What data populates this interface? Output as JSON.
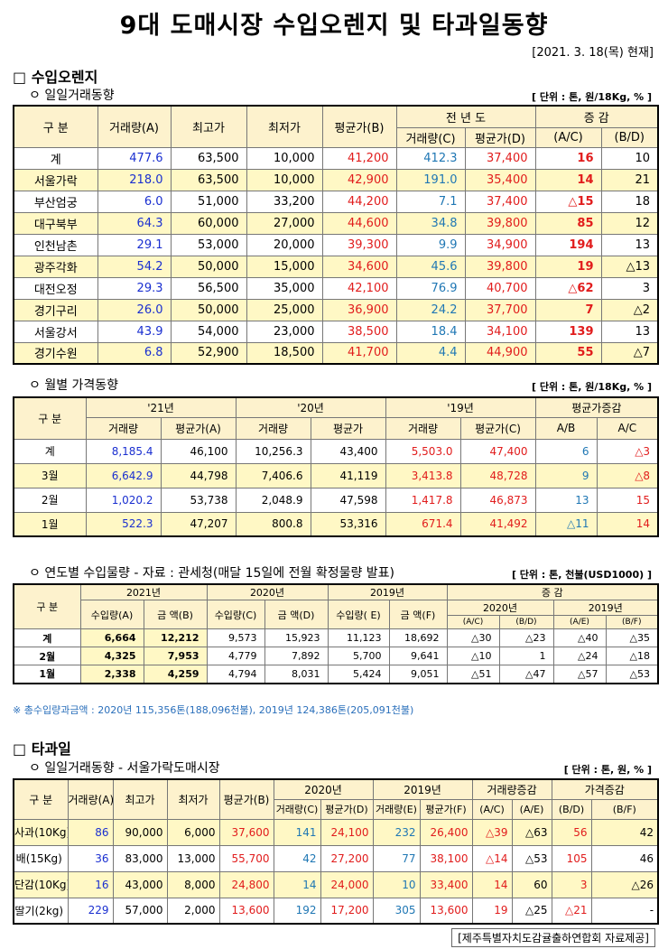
{
  "title": "9대 도매시장 수입오렌지 및 타과일동향",
  "date": "[2021. 3. 18(목) 현재]",
  "orange": {
    "section": "□ 수입오렌지",
    "daily": {
      "subtitle": "ㅇ 일일거래동향",
      "unit": "[ 단위 : 톤, 원/18Kg, % ]",
      "headers": {
        "gubun": "구 분",
        "vol": "거래량(A)",
        "max": "최고가",
        "min": "최저가",
        "avg": "평균가(B)",
        "prev": "전 년 도",
        "change": "증 감",
        "pvol": "거래량(C)",
        "pavg": "평균가(D)",
        "ac": "(A/C)",
        "bd": "(B/D)"
      },
      "rows": [
        {
          "name": "계",
          "vol": "477.6",
          "max": "63,500",
          "min": "10,000",
          "avg": "41,200",
          "pvol": "412.3",
          "pavg": "37,400",
          "ac": "16",
          "bd": "10"
        },
        {
          "name": "서울가락",
          "vol": "218.0",
          "max": "63,500",
          "min": "10,000",
          "avg": "42,900",
          "pvol": "191.0",
          "pavg": "35,400",
          "ac": "14",
          "bd": "21"
        },
        {
          "name": "부산엄궁",
          "vol": "6.0",
          "max": "51,000",
          "min": "33,200",
          "avg": "44,200",
          "pvol": "7.1",
          "pavg": "37,400",
          "ac": "△15",
          "bd": "18"
        },
        {
          "name": "대구북부",
          "vol": "64.3",
          "max": "60,000",
          "min": "27,000",
          "avg": "44,600",
          "pvol": "34.8",
          "pavg": "39,800",
          "ac": "85",
          "bd": "12"
        },
        {
          "name": "인천남촌",
          "vol": "29.1",
          "max": "53,000",
          "min": "20,000",
          "avg": "39,300",
          "pvol": "9.9",
          "pavg": "34,900",
          "ac": "194",
          "bd": "13"
        },
        {
          "name": "광주각화",
          "vol": "54.2",
          "max": "50,000",
          "min": "15,000",
          "avg": "34,600",
          "pvol": "45.6",
          "pavg": "39,800",
          "ac": "19",
          "bd": "△13"
        },
        {
          "name": "대전오정",
          "vol": "29.3",
          "max": "56,500",
          "min": "35,000",
          "avg": "42,100",
          "pvol": "76.9",
          "pavg": "40,700",
          "ac": "△62",
          "bd": "3"
        },
        {
          "name": "경기구리",
          "vol": "26.0",
          "max": "50,000",
          "min": "25,000",
          "avg": "36,900",
          "pvol": "24.2",
          "pavg": "37,700",
          "ac": "7",
          "bd": "△2"
        },
        {
          "name": "서울강서",
          "vol": "43.9",
          "max": "54,000",
          "min": "23,000",
          "avg": "38,500",
          "pvol": "18.4",
          "pavg": "34,100",
          "ac": "139",
          "bd": "13"
        },
        {
          "name": "경기수원",
          "vol": "6.8",
          "max": "52,900",
          "min": "18,500",
          "avg": "41,700",
          "pvol": "4.4",
          "pavg": "44,900",
          "ac": "55",
          "bd": "△7"
        }
      ]
    },
    "monthly": {
      "subtitle": "ㅇ 월별 가격동향",
      "unit": "[ 단위 : 톤, 원/18Kg, % ]",
      "headers": {
        "gubun": "구 분",
        "y21": "'21년",
        "y20": "'20년",
        "y19": "'19년",
        "chg": "평균가증감",
        "vol": "거래량",
        "avgA": "평균가(A)",
        "avg": "평균가",
        "avgC": "평균가(C)",
        "ab": "A/B",
        "ac": "A/C"
      },
      "rows": [
        {
          "name": "계",
          "v21": "8,185.4",
          "a21": "46,100",
          "v20": "10,256.3",
          "a20": "43,400",
          "v19": "5,503.0",
          "a19": "47,400",
          "ab": "6",
          "ac": "△3"
        },
        {
          "name": "3월",
          "v21": "6,642.9",
          "a21": "44,798",
          "v20": "7,406.6",
          "a20": "41,119",
          "v19": "3,413.8",
          "a19": "48,728",
          "ab": "9",
          "ac": "△8"
        },
        {
          "name": "2월",
          "v21": "1,020.2",
          "a21": "53,738",
          "v20": "2,048.9",
          "a20": "47,598",
          "v19": "1,417.8",
          "a19": "46,873",
          "ab": "13",
          "ac": "15"
        },
        {
          "name": "1월",
          "v21": "522.3",
          "a21": "47,207",
          "v20": "800.8",
          "a20": "53,316",
          "v19": "671.4",
          "a19": "41,492",
          "ab": "△11",
          "ac": "14"
        }
      ]
    },
    "yearly": {
      "subtitle": "ㅇ 연도별 수입물량 - 자료 : 관세청(매달 15일에 전월 확정물량 발표)",
      "unit": "[ 단위 : 톤, 천불(USD1000) ]",
      "headers": {
        "gubun": "구 분",
        "y21": "2021년",
        "y20": "2020년",
        "y19": "2019년",
        "chg": "증 감",
        "c20": "2020년",
        "c19": "2019년",
        "qa": "수입량(A)",
        "amtb": "금 액(B)",
        "qc": "수입량(C)",
        "amtd": "금 액(D)",
        "qe": "수입량( E)",
        "amtf": "금 액(F)",
        "ac": "(A/C)",
        "bd": "(B/D)",
        "ae": "(A/E)",
        "bf": "(B/F)"
      },
      "rows": [
        {
          "name": "계",
          "qa": "6,664",
          "ab": "12,212",
          "qc": "9,573",
          "ad": "15,923",
          "qe": "11,123",
          "af": "18,692",
          "c1": "△30",
          "c2": "△23",
          "c3": "△40",
          "c4": "△35"
        },
        {
          "name": "2월",
          "qa": "4,325",
          "ab": "7,953",
          "qc": "4,779",
          "ad": "7,892",
          "qe": "5,700",
          "af": "9,641",
          "c1": "△10",
          "c2": "1",
          "c3": "△24",
          "c4": "△18"
        },
        {
          "name": "1월",
          "qa": "2,338",
          "ab": "4,259",
          "qc": "4,794",
          "ad": "8,031",
          "qe": "5,424",
          "af": "9,051",
          "c1": "△51",
          "c2": "△47",
          "c3": "△57",
          "c4": "△53"
        }
      ],
      "note": "※ 총수입량과금액 : 2020년 115,356톤(188,096천불),   2019년 124,386톤(205,091천불)"
    }
  },
  "fruit": {
    "section": "□ 타과일",
    "subtitle": "ㅇ 일일거래동향 - 서울가락도매시장",
    "unit": "[ 단위 : 톤, 원, % ]",
    "headers": {
      "gubun": "구 분",
      "vol": "거래량(A)",
      "max": "최고가",
      "min": "최저가",
      "avg": "평균가(B)",
      "y20": "2020년",
      "y19": "2019년",
      "volchg": "거래량증감",
      "pricechg": "가격증감",
      "c": "거래량(C)",
      "d": "평균가(D)",
      "e": "거래량(E)",
      "f": "평균가(F)",
      "ac": "(A/C)",
      "ae": "(A/E)",
      "bd": "(B/D)",
      "bf": "(B/F)"
    },
    "rows": [
      {
        "name": "사과(10Kg)",
        "vol": "86",
        "max": "90,000",
        "min": "6,000",
        "avg": "37,600",
        "c": "141",
        "d": "24,100",
        "e": "232",
        "f": "26,400",
        "ac": "△39",
        "ae": "△63",
        "bd": "56",
        "bf": "42"
      },
      {
        "name": "배(15Kg)",
        "vol": "36",
        "max": "83,000",
        "min": "13,000",
        "avg": "55,700",
        "c": "42",
        "d": "27,200",
        "e": "77",
        "f": "38,100",
        "ac": "△14",
        "ae": "△53",
        "bd": "105",
        "bf": "46"
      },
      {
        "name": "단감(10Kg)",
        "vol": "16",
        "max": "43,000",
        "min": "8,000",
        "avg": "24,800",
        "c": "14",
        "d": "24,000",
        "e": "10",
        "f": "33,400",
        "ac": "14",
        "ae": "60",
        "bd": "3",
        "bf": "△26"
      },
      {
        "name": "딸기(2kg)",
        "vol": "229",
        "max": "57,000",
        "min": "2,000",
        "avg": "13,600",
        "c": "192",
        "d": "17,200",
        "e": "305",
        "f": "13,600",
        "ac": "19",
        "ae": "△25",
        "bd": "△21",
        "bf": "-"
      }
    ],
    "footer": "[제주특별자치도감귤출하연합회 자료제공]"
  }
}
